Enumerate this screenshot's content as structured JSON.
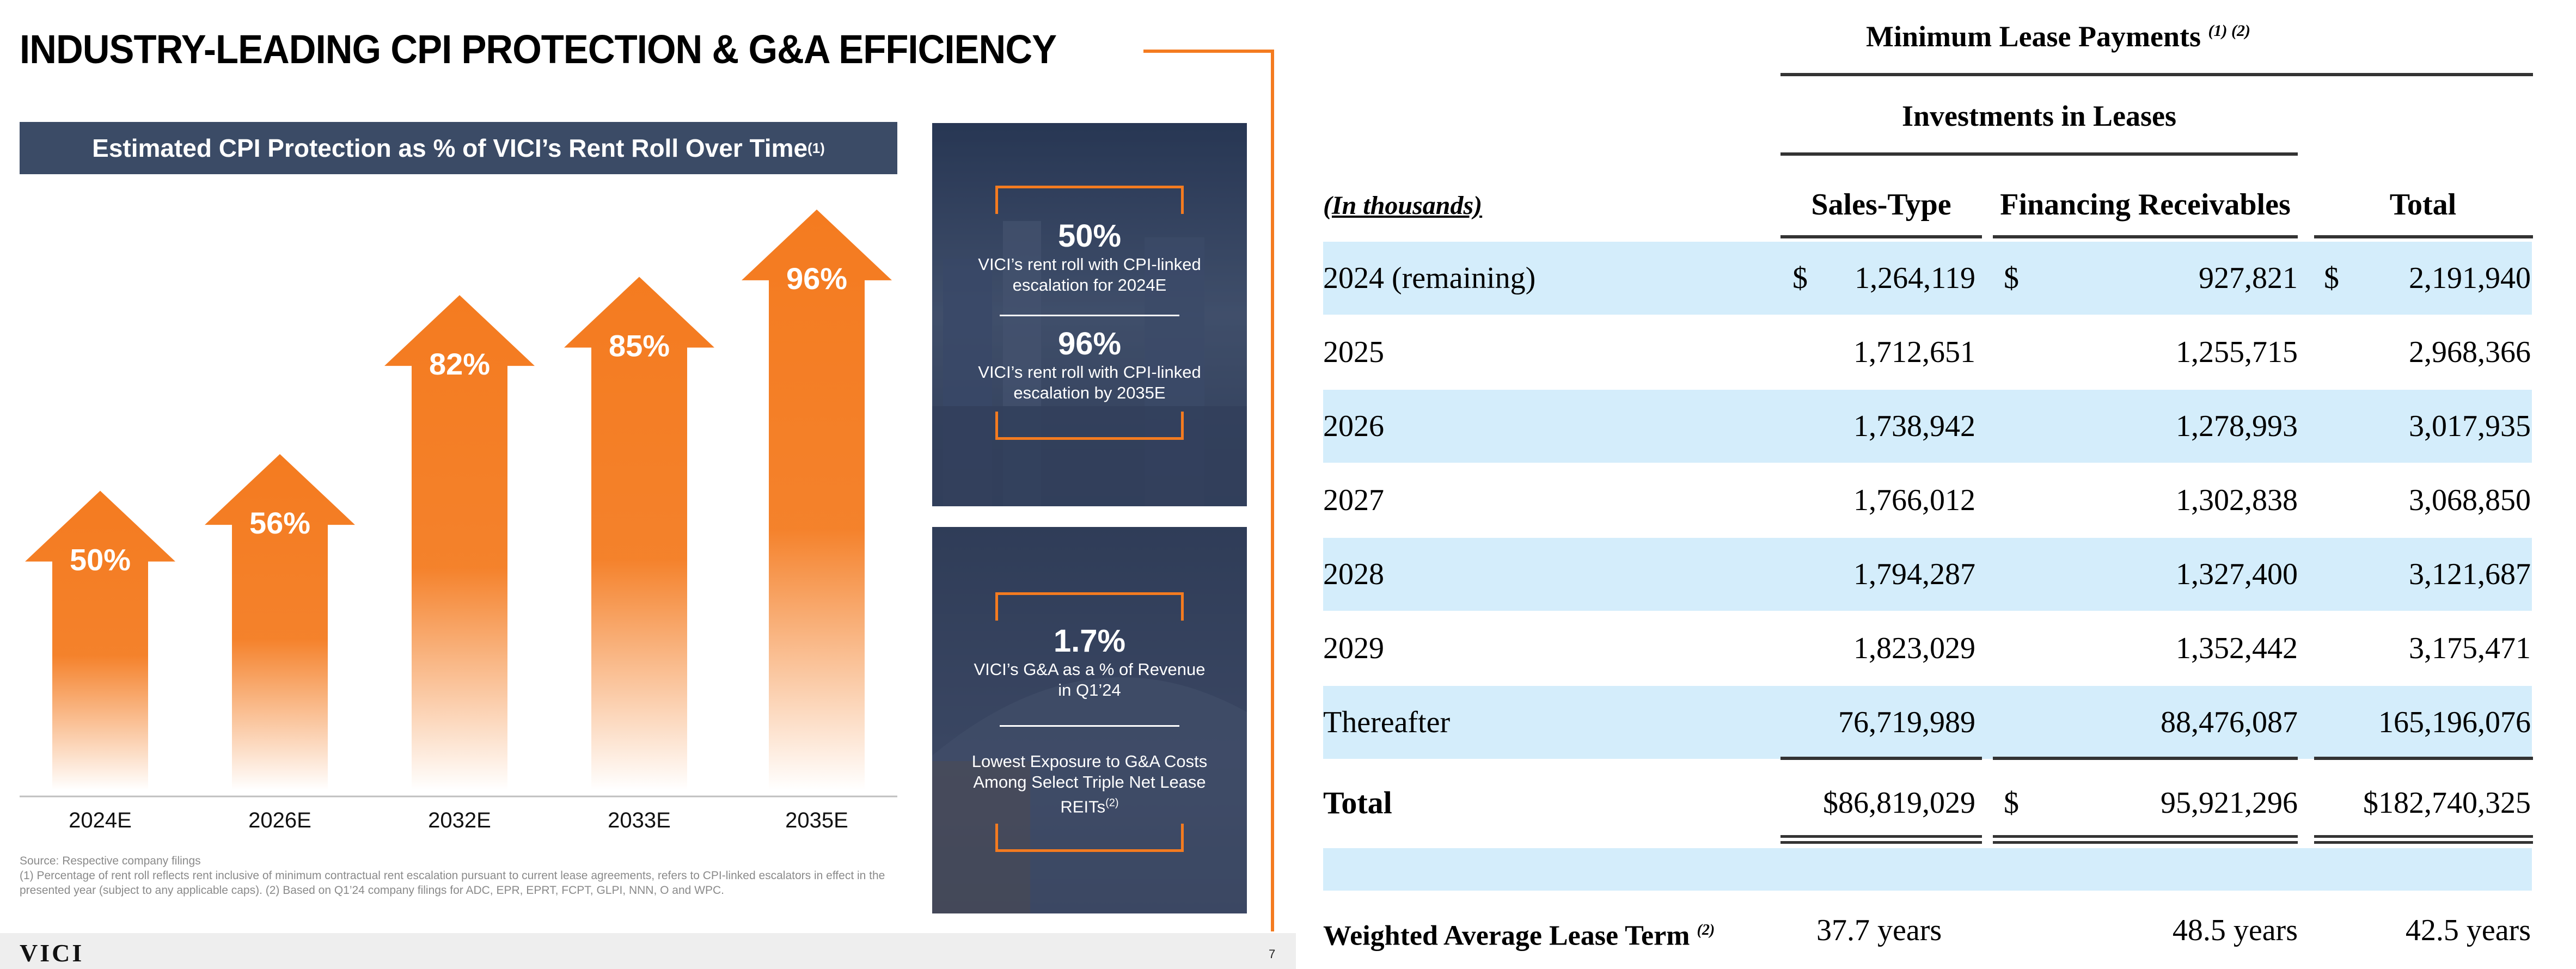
{
  "slide": {
    "title": "INDUSTRY-LEADING CPI PROTECTION & G&A EFFICIENCY",
    "chart_header": "Estimated CPI Protection as % of VICI’s Rent Roll Over Time",
    "chart_header_note": "(1)",
    "card1": {
      "stat1": "50%",
      "desc1": "VICI’s rent roll with CPI-linked escalation for 2024E",
      "stat2": "96%",
      "desc2": "VICI’s rent roll with CPI-linked escalation by 2035E"
    },
    "card2": {
      "stat": "1.7%",
      "desc": "VICI’s G&A as a % of Revenue in Q1’24",
      "desc2": "Lowest Exposure to G&A Costs Among Select Triple Net Lease REITs",
      "desc2_note": "(2)"
    },
    "footnote_source": "Source: Respective company filings",
    "footnote_text": "(1) Percentage of rent roll reflects rent inclusive of minimum contractual rent escalation pursuant to current lease agreements, refers to CPI-linked escalators in effect in the presented year (subject to any applicable caps). (2) Based on Q1’24 company filings for ADC, EPR, EPRT, FCPT, GLPI, NNN, O and WPC.",
    "logo": "VICI",
    "page_number": "7"
  },
  "chart_data": {
    "type": "bar",
    "title": "Estimated CPI Protection as % of VICI’s Rent Roll Over Time",
    "categories": [
      "2024E",
      "2026E",
      "2032E",
      "2033E",
      "2035E"
    ],
    "values": [
      50,
      56,
      82,
      85,
      96
    ],
    "value_labels": [
      "50%",
      "56%",
      "82%",
      "85%",
      "96%"
    ],
    "ylabel": "",
    "xlabel": "",
    "ylim": [
      0,
      100
    ],
    "bar_color": "#F47B20"
  },
  "table": {
    "header_main": "Minimum Lease Payments",
    "header_main_note": "(1) (2)",
    "header_sub": "Investments in Leases",
    "unit_label": "(In thousands)",
    "columns": [
      "Sales-Type",
      "Financing Receivables",
      "Total"
    ],
    "rows": [
      {
        "label": "2024 (remaining)",
        "c1_sym": "$",
        "c1": "1,264,119",
        "c2_sym": "$",
        "c2": "927,821",
        "c3_sym": "$",
        "c3": "2,191,940"
      },
      {
        "label": "2025",
        "c1": "1,712,651",
        "c2": "1,255,715",
        "c3": "2,968,366"
      },
      {
        "label": "2026",
        "c1": "1,738,942",
        "c2": "1,278,993",
        "c3": "3,017,935"
      },
      {
        "label": "2027",
        "c1": "1,766,012",
        "c2": "1,302,838",
        "c3": "3,068,850"
      },
      {
        "label": "2028",
        "c1": "1,794,287",
        "c2": "1,327,400",
        "c3": "3,121,687"
      },
      {
        "label": "2029",
        "c1": "1,823,029",
        "c2": "1,352,442",
        "c3": "3,175,471"
      },
      {
        "label": "Thereafter",
        "c1": "76,719,989",
        "c2": "88,476,087",
        "c3": "165,196,076"
      }
    ],
    "total": {
      "label": "Total",
      "c1": "$86,819,029",
      "c2_sym": "$",
      "c2": "95,921,296",
      "c3": "$182,740,325"
    },
    "wal": {
      "label": "Weighted Average Lease Term",
      "note": "(2)",
      "c1": "37.7 years",
      "c2": "48.5 years",
      "c3": "42.5 years"
    }
  }
}
